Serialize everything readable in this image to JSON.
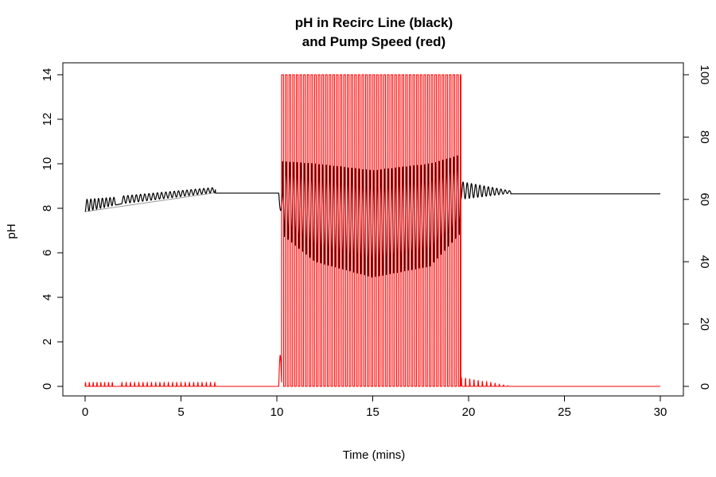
{
  "chart_data": {
    "type": "line",
    "title": [
      "pH in Recirc Line (black)",
      "and Pump Speed (red)"
    ],
    "xlabel": "Time (mins)",
    "ylabel": "pH",
    "y2label": "",
    "xlim": [
      0,
      30
    ],
    "ylim": [
      0,
      14
    ],
    "y2lim": [
      0,
      100
    ],
    "x_ticks": [
      "0",
      "5",
      "10",
      "15",
      "20",
      "25",
      "30"
    ],
    "y_ticks": [
      "0",
      "2",
      "4",
      "6",
      "8",
      "10",
      "12",
      "14"
    ],
    "y2_ticks": [
      "0",
      "20",
      "40",
      "60",
      "80",
      "100"
    ],
    "grid": false,
    "colors": {
      "ph": "#000000",
      "ph_trend": "#999999",
      "pump": "#ff0000"
    },
    "series": [
      {
        "axis": "left",
        "segments": [
          {
            "t": [
              0,
              1.6
            ],
            "mode": "osc",
            "base": [
              7.85,
              8.15
            ],
            "amp": [
              0.55,
              0.35
            ],
            "period": 0.2
          },
          {
            "t": [
              1.6,
              1.9
            ],
            "mode": "flat",
            "base": [
              8.15,
              8.2
            ]
          },
          {
            "t": [
              1.9,
              6.8
            ],
            "mode": "osc",
            "base": [
              8.2,
              8.72
            ],
            "amp": [
              0.35,
              0.22
            ],
            "period": 0.22
          },
          {
            "t": [
              6.8,
              10.1
            ],
            "mode": "flat",
            "base": [
              8.68,
              8.68
            ]
          },
          {
            "t": [
              10.1,
              10.3
            ],
            "mode": "dip",
            "base": [
              8.68,
              8.68
            ],
            "min": 7.9
          },
          {
            "t": [
              10.3,
              19.6
            ],
            "mode": "band",
            "top": [
              [
                10.3,
                10.1
              ],
              [
                12,
                10.0
              ],
              [
                15,
                9.7
              ],
              [
                18,
                10.0
              ],
              [
                19.6,
                10.4
              ]
            ],
            "bottom": [
              [
                10.3,
                6.8
              ],
              [
                12,
                5.6
              ],
              [
                15,
                4.9
              ],
              [
                18,
                5.4
              ],
              [
                19.6,
                6.9
              ]
            ],
            "period": 0.19
          },
          {
            "t": [
              19.6,
              22.2
            ],
            "mode": "osc",
            "base": [
              8.4,
              8.68
            ],
            "amp": [
              0.8,
              0.1
            ],
            "period": 0.22
          },
          {
            "t": [
              22.2,
              30
            ],
            "mode": "flat",
            "base": [
              8.65,
              8.65
            ]
          }
        ],
        "trend": {
          "t": [
            0,
            6.8
          ],
          "y": [
            7.85,
            8.7
          ]
        }
      },
      {
        "axis": "right",
        "segments": [
          {
            "t": [
              0,
              1.6
            ],
            "mode": "spikes",
            "peak": 1.3,
            "period": 0.2
          },
          {
            "t": [
              1.6,
              1.9
            ],
            "mode": "flat",
            "base": [
              0,
              0
            ]
          },
          {
            "t": [
              1.9,
              6.8
            ],
            "mode": "spikes",
            "peak": 1.2,
            "period": 0.22
          },
          {
            "t": [
              6.8,
              10.1
            ],
            "mode": "flat",
            "base": [
              0,
              0
            ]
          },
          {
            "t": [
              10.1,
              10.25
            ],
            "mode": "bump",
            "peak": 10
          },
          {
            "t": [
              10.25,
              19.6
            ],
            "mode": "square",
            "high": 100,
            "low": 0,
            "period": 0.19
          },
          {
            "t": [
              19.6,
              22.2
            ],
            "mode": "spikes",
            "peak": 3,
            "period": 0.22,
            "decay": true
          },
          {
            "t": [
              22.2,
              30
            ],
            "mode": "flat",
            "base": [
              0,
              0
            ]
          }
        ]
      }
    ]
  }
}
